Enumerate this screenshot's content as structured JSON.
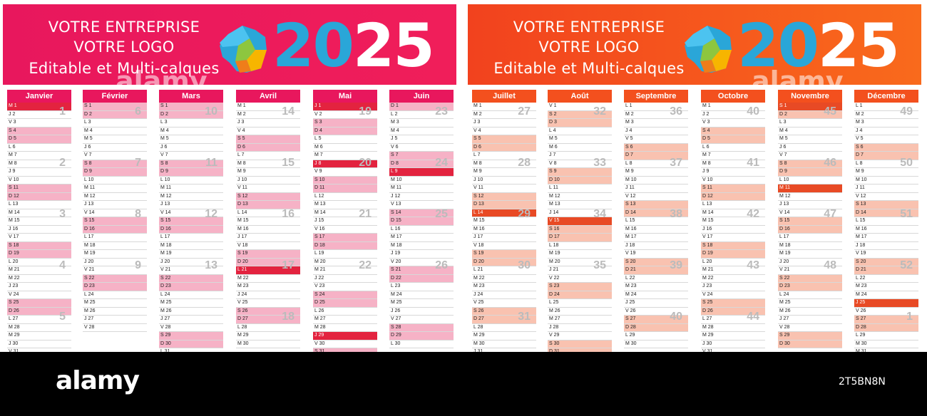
{
  "banner": {
    "line1": "VOTRE ENTREPRISE",
    "line2": "VOTRE LOGO",
    "line3": "Editable et Multi-calques",
    "year_digits": [
      "2",
      "0",
      "2",
      "5"
    ],
    "year_colors": [
      "#2aa6d8",
      "#2aa6d8",
      "#ffffff",
      "#ffffff"
    ]
  },
  "watermark": "alamy",
  "footer": {
    "brand": "alamy",
    "image_id": "2T5BN8N"
  },
  "colors": {
    "left_accent": "#e8175d",
    "right_accent": "#f3501e",
    "weekend": "#f6b2c6",
    "holiday": "#e3233f"
  },
  "left_months": [
    {
      "name": "Janvier",
      "rows": [
        "M 1",
        "J 2",
        "V 3",
        "S 4",
        "D 5",
        "L 6",
        "M 7",
        "M 8",
        "J 9",
        "V 10",
        "S 11",
        "D 12",
        "L 13",
        "M 14",
        "M 15",
        "J 16",
        "V 17",
        "S 18",
        "D 19",
        "L 20",
        "M 21",
        "M 22",
        "J 23",
        "V 24",
        "S 25",
        "D 26",
        "L 27",
        "M 28",
        "M 29",
        "J 30",
        "V 31"
      ],
      "weeks": [
        "1",
        "2",
        "3",
        "4",
        "5"
      ]
    },
    {
      "name": "Février",
      "rows": [
        "S 1",
        "D 2",
        "L 3",
        "M 4",
        "M 5",
        "J 6",
        "V 7",
        "S 8",
        "D 9",
        "L 10",
        "M 11",
        "M 12",
        "J 13",
        "V 14",
        "S 15",
        "D 16",
        "L 17",
        "M 18",
        "M 19",
        "J 20",
        "V 21",
        "S 22",
        "D 23",
        "L 24",
        "M 25",
        "M 26",
        "J 27",
        "V 28"
      ],
      "weeks": [
        "6",
        "7",
        "8",
        "9"
      ]
    },
    {
      "name": "Mars",
      "rows": [
        "S 1",
        "D 2",
        "L 3",
        "M 4",
        "M 5",
        "J 6",
        "V 7",
        "S 8",
        "D 9",
        "L 10",
        "M 11",
        "M 12",
        "J 13",
        "V 14",
        "S 15",
        "D 16",
        "L 17",
        "M 18",
        "M 19",
        "J 20",
        "V 21",
        "S 22",
        "D 23",
        "L 24",
        "M 25",
        "M 26",
        "J 27",
        "V 28",
        "S 29",
        "D 30",
        "L 31"
      ],
      "weeks": [
        "10",
        "11",
        "12",
        "13"
      ]
    },
    {
      "name": "Avril",
      "rows": [
        "M 1",
        "M 2",
        "J 3",
        "V 4",
        "S 5",
        "D 6",
        "L 7",
        "M 8",
        "M 9",
        "J 10",
        "V 11",
        "S 12",
        "D 13",
        "L 14",
        "M 15",
        "M 16",
        "J 17",
        "V 18",
        "S 19",
        "D 20",
        "L 21",
        "M 22",
        "M 23",
        "J 24",
        "V 25",
        "S 26",
        "D 27",
        "L 28",
        "M 29",
        "M 30"
      ],
      "weeks": [
        "14",
        "15",
        "16",
        "17",
        "18"
      ]
    },
    {
      "name": "Mai",
      "rows": [
        "J 1",
        "V 2",
        "S 3",
        "D 4",
        "L 5",
        "M 6",
        "M 7",
        "J 8",
        "V 9",
        "S 10",
        "D 11",
        "L 12",
        "M 13",
        "M 14",
        "J 15",
        "V 16",
        "S 17",
        "D 18",
        "L 19",
        "M 20",
        "M 21",
        "J 22",
        "V 23",
        "S 24",
        "D 25",
        "L 26",
        "M 27",
        "M 28",
        "J 29",
        "V 30",
        "S 31"
      ],
      "weeks": [
        "19",
        "20",
        "21",
        "22"
      ]
    },
    {
      "name": "Juin",
      "rows": [
        "D 1",
        "L 2",
        "M 3",
        "M 4",
        "J 5",
        "V 6",
        "S 7",
        "D 8",
        "L 9",
        "M 10",
        "M 11",
        "J 12",
        "V 13",
        "S 14",
        "D 15",
        "L 16",
        "M 17",
        "M 18",
        "J 19",
        "V 20",
        "S 21",
        "D 22",
        "L 23",
        "M 24",
        "M 25",
        "J 26",
        "V 27",
        "S 28",
        "D 29",
        "L 30"
      ],
      "weeks": [
        "23",
        "24",
        "25",
        "26"
      ]
    }
  ],
  "right_months": [
    {
      "name": "Juillet",
      "rows": [
        "M 1",
        "M 2",
        "J 3",
        "V 4",
        "S 5",
        "D 6",
        "L 7",
        "M 8",
        "M 9",
        "J 10",
        "V 11",
        "S 12",
        "D 13",
        "L 14",
        "M 15",
        "M 16",
        "J 17",
        "V 18",
        "S 19",
        "D 20",
        "L 21",
        "M 22",
        "M 23",
        "J 24",
        "V 25",
        "S 26",
        "D 27",
        "L 28",
        "M 29",
        "M 30",
        "J 31"
      ],
      "weeks": [
        "27",
        "28",
        "29",
        "30",
        "31"
      ]
    },
    {
      "name": "Août",
      "rows": [
        "V 1",
        "S 2",
        "D 3",
        "L 4",
        "M 5",
        "M 6",
        "J 7",
        "V 8",
        "S 9",
        "D 10",
        "L 11",
        "M 12",
        "M 13",
        "J 14",
        "V 15",
        "S 16",
        "D 17",
        "L 18",
        "M 19",
        "M 20",
        "J 21",
        "V 22",
        "S 23",
        "D 24",
        "L 25",
        "M 26",
        "M 27",
        "J 28",
        "V 29",
        "S 30",
        "D 31"
      ],
      "weeks": [
        "32",
        "33",
        "34",
        "35"
      ]
    },
    {
      "name": "Septembre",
      "rows": [
        "L 1",
        "M 2",
        "M 3",
        "J 4",
        "V 5",
        "S 6",
        "D 7",
        "L 8",
        "M 9",
        "M 10",
        "J 11",
        "V 12",
        "S 13",
        "D 14",
        "L 15",
        "M 16",
        "M 17",
        "J 18",
        "V 19",
        "S 20",
        "D 21",
        "L 22",
        "M 23",
        "M 24",
        "J 25",
        "V 26",
        "S 27",
        "D 28",
        "L 29",
        "M 30"
      ],
      "weeks": [
        "36",
        "37",
        "38",
        "39",
        "40"
      ]
    },
    {
      "name": "Octobre",
      "rows": [
        "M 1",
        "J 2",
        "V 3",
        "S 4",
        "D 5",
        "L 6",
        "M 7",
        "M 8",
        "J 9",
        "V 10",
        "S 11",
        "D 12",
        "L 13",
        "M 14",
        "M 15",
        "J 16",
        "V 17",
        "S 18",
        "D 19",
        "L 20",
        "M 21",
        "M 22",
        "J 23",
        "V 24",
        "S 25",
        "D 26",
        "L 27",
        "M 28",
        "M 29",
        "J 30",
        "V 31"
      ],
      "weeks": [
        "40",
        "41",
        "42",
        "43",
        "44"
      ]
    },
    {
      "name": "Novembre",
      "rows": [
        "S 1",
        "D 2",
        "L 3",
        "M 4",
        "M 5",
        "J 6",
        "V 7",
        "S 8",
        "D 9",
        "L 10",
        "M 11",
        "M 12",
        "J 13",
        "V 14",
        "S 15",
        "D 16",
        "L 17",
        "M 18",
        "M 19",
        "J 20",
        "V 21",
        "S 22",
        "D 23",
        "L 24",
        "M 25",
        "M 26",
        "J 27",
        "V 28",
        "S 29",
        "D 30"
      ],
      "weeks": [
        "45",
        "46",
        "47",
        "48"
      ]
    },
    {
      "name": "Décembre",
      "rows": [
        "L 1",
        "M 2",
        "M 3",
        "J 4",
        "V 5",
        "S 6",
        "D 7",
        "L 8",
        "M 9",
        "M 10",
        "J 11",
        "V 12",
        "S 13",
        "D 14",
        "L 15",
        "M 16",
        "M 17",
        "J 18",
        "V 19",
        "S 20",
        "D 21",
        "L 22",
        "M 23",
        "M 24",
        "J 25",
        "V 26",
        "S 27",
        "D 28",
        "L 29",
        "M 30",
        "M 31"
      ],
      "weeks": [
        "49",
        "50",
        "51",
        "52",
        "1"
      ]
    }
  ]
}
